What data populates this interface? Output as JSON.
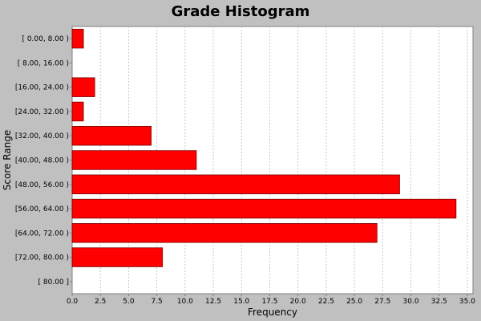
{
  "chart_data": {
    "type": "bar",
    "orientation": "horizontal",
    "title": "Grade Histogram",
    "xlabel": "Frequency",
    "ylabel": "Score Range",
    "categories": [
      "[ 0.00, 8.00 )",
      "[ 8.00, 16.00 )",
      "[16.00, 24.00 )",
      "[24.00, 32.00 )",
      "[32.00, 40.00 )",
      "[40.00, 48.00 )",
      "[48.00, 56.00 )",
      "[56.00, 64.00 )",
      "[64.00, 72.00 )",
      "[72.00, 80.00 )",
      "[ 80.00 ]"
    ],
    "values": [
      1,
      0,
      2,
      1,
      7,
      11,
      29,
      34,
      27,
      8,
      0
    ],
    "xlim": [
      0,
      35.5
    ],
    "xticks": [
      0.0,
      2.5,
      5.0,
      7.5,
      10.0,
      12.5,
      15.0,
      17.5,
      20.0,
      22.5,
      25.0,
      27.5,
      30.0,
      32.5,
      35.0
    ],
    "grid": true,
    "bar_color": "#ff0000",
    "plot_background": "#ffffff",
    "figure_background": "#c0c0c0",
    "grid_color": "#c8c8c8"
  }
}
